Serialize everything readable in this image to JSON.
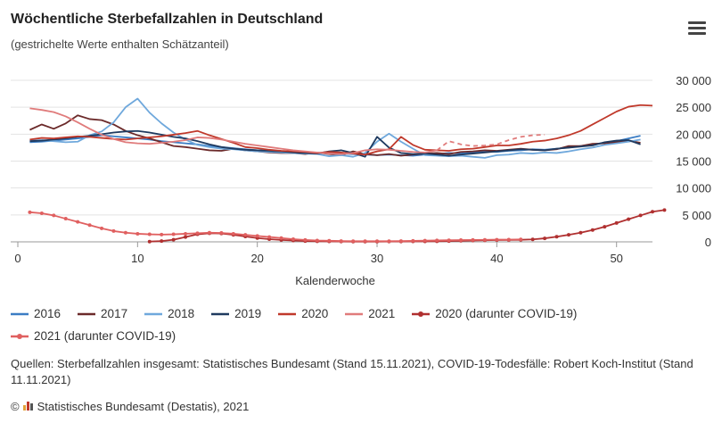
{
  "header": {
    "title": "Wöchentliche Sterbefallzahlen in Deutschland",
    "subtitle": "(gestrichelte Werte enthalten Schätzanteil)",
    "menu_icon": "hamburger-menu-icon"
  },
  "chart_data": {
    "type": "line",
    "title": "Wöchentliche Sterbefallzahlen in Deutschland",
    "subtitle": "(gestrichelte Werte enthalten Schätzanteil)",
    "xlabel": "Kalenderwoche",
    "ylabel": "",
    "xlim": [
      0,
      53
    ],
    "ylim": [
      0,
      30000
    ],
    "x_ticks": [
      0,
      10,
      20,
      30,
      40,
      50
    ],
    "x_tick_labels": [
      "0",
      "10",
      "20",
      "30",
      "40",
      "50"
    ],
    "y_ticks": [
      0,
      5000,
      10000,
      15000,
      20000,
      25000,
      30000
    ],
    "y_tick_labels": [
      "0",
      "5 000",
      "10 000",
      "15 000",
      "20 000",
      "25 000",
      "30 000"
    ],
    "grid": "horizontal",
    "legend_position": "bottom",
    "series": [
      {
        "name": "2016",
        "color": "#3b7dc4",
        "dashed_from": null,
        "markers": false,
        "x_start": 1,
        "values": [
          18500,
          18600,
          18800,
          19000,
          19200,
          19500,
          19800,
          19600,
          19400,
          19200,
          19000,
          18700,
          18500,
          18300,
          18100,
          17800,
          17600,
          17400,
          17200,
          17000,
          16900,
          16800,
          16700,
          16600,
          16500,
          16600,
          16400,
          16300,
          16200,
          16100,
          16200,
          16100,
          16000,
          16200,
          16300,
          16500,
          16400,
          16600,
          16800,
          16700,
          16900,
          17000,
          17200,
          17100,
          17300,
          17500,
          17800,
          18100,
          18400,
          18700,
          19200,
          19700
        ]
      },
      {
        "name": "2017",
        "color": "#6b2a2a",
        "dashed_from": null,
        "markers": false,
        "x_start": 1,
        "values": [
          20800,
          21800,
          21000,
          22000,
          23500,
          22800,
          22600,
          21800,
          20600,
          19800,
          19200,
          18500,
          17800,
          17600,
          17300,
          17000,
          16900,
          17300,
          17000,
          16800,
          16600,
          16500,
          16500,
          16300,
          16600,
          16300,
          16100,
          16800,
          16300,
          16100,
          16300,
          16000,
          16200,
          16400,
          16500,
          16300,
          16700,
          16800,
          17000,
          16900,
          17100,
          17300,
          17100,
          17000,
          17200,
          17800,
          17800,
          18200,
          18300,
          18500,
          18800,
          18400
        ]
      },
      {
        "name": "2018",
        "color": "#6fa8dc",
        "dashed_from": null,
        "markers": false,
        "x_start": 1,
        "values": [
          18800,
          18900,
          18700,
          18500,
          18600,
          19800,
          20500,
          22200,
          25000,
          26600,
          24000,
          22000,
          20300,
          19000,
          18000,
          17600,
          17300,
          17200,
          17000,
          16800,
          16700,
          16600,
          16500,
          16400,
          16300,
          15900,
          16100,
          15800,
          16500,
          18600,
          20100,
          18600,
          17300,
          16100,
          16000,
          15900,
          16000,
          15800,
          15600,
          16100,
          16200,
          16500,
          16400,
          16600,
          16500,
          16800,
          17200,
          17500,
          18000,
          18300,
          18600,
          19000
        ]
      },
      {
        "name": "2019",
        "color": "#1f3a5f",
        "dashed_from": null,
        "markers": false,
        "x_start": 1,
        "values": [
          18700,
          18800,
          19000,
          19200,
          19500,
          19700,
          20000,
          20300,
          20500,
          20600,
          20300,
          19900,
          19500,
          19200,
          18700,
          18100,
          17600,
          17300,
          17100,
          17000,
          16900,
          16800,
          16600,
          16500,
          16400,
          16800,
          17000,
          16500,
          15800,
          19500,
          17500,
          16500,
          16300,
          16400,
          16200,
          16000,
          16200,
          16400,
          16600,
          16800,
          17000,
          17200,
          17100,
          17000,
          17300,
          17500,
          17700,
          17900,
          18500,
          18800,
          18900,
          18100
        ]
      },
      {
        "name": "2020",
        "color": "#c0392b",
        "dashed_from": null,
        "markers": false,
        "x_start": 1,
        "values": [
          19000,
          19300,
          19200,
          19400,
          19600,
          19500,
          19300,
          19100,
          19000,
          19200,
          19400,
          19600,
          19900,
          20200,
          20600,
          19800,
          19100,
          18400,
          17600,
          17400,
          17100,
          16900,
          16800,
          16700,
          16500,
          16700,
          16600,
          16400,
          16200,
          16800,
          17200,
          19500,
          18000,
          17100,
          17000,
          16900,
          17200,
          17300,
          17600,
          17900,
          17900,
          18200,
          18600,
          18800,
          19200,
          19800,
          20600,
          21800,
          23000,
          24200,
          25100,
          25400,
          25300
        ]
      },
      {
        "name": "2021",
        "color": "#e07b7b",
        "dashed_from": 35,
        "markers": false,
        "x_start": 1,
        "values": [
          24800,
          24500,
          24100,
          23300,
          22200,
          21000,
          19900,
          19100,
          18500,
          18300,
          18200,
          18400,
          18600,
          18900,
          19400,
          19300,
          19000,
          18600,
          18200,
          17900,
          17600,
          17300,
          17000,
          16800,
          16600,
          16400,
          16300,
          16500,
          17000,
          17200,
          17100,
          16900,
          16700,
          16600,
          17000,
          18700,
          18100,
          17800,
          17900,
          18100,
          18900,
          19500,
          19800,
          19900
        ]
      },
      {
        "name": "2020 (darunter COVID-19)",
        "color": "#b03030",
        "dashed_from": null,
        "markers": true,
        "x_start": 11,
        "values": [
          50,
          150,
          400,
          900,
          1400,
          1600,
          1550,
          1300,
          1000,
          700,
          500,
          350,
          250,
          150,
          100,
          80,
          60,
          50,
          50,
          50,
          60,
          70,
          80,
          90,
          100,
          150,
          200,
          250,
          300,
          330,
          350,
          380,
          450,
          650,
          950,
          1300,
          1700,
          2200,
          2800,
          3500,
          4200,
          4900,
          5600,
          5900
        ]
      },
      {
        "name": "2021 (darunter COVID-19)",
        "color": "#e06060",
        "dashed_from": null,
        "markers": true,
        "x_start": 1,
        "values": [
          5500,
          5300,
          4900,
          4300,
          3700,
          3100,
          2500,
          2000,
          1700,
          1500,
          1400,
          1350,
          1400,
          1500,
          1600,
          1700,
          1650,
          1500,
          1300,
          1100,
          900,
          700,
          500,
          350,
          250,
          200,
          150,
          130,
          120,
          120,
          130,
          150,
          180,
          220,
          260,
          300,
          330,
          350,
          370,
          400,
          420,
          450
        ]
      }
    ]
  },
  "legend": {
    "items": [
      {
        "label": "2016",
        "color": "#3b7dc4",
        "marker": false
      },
      {
        "label": "2017",
        "color": "#6b2a2a",
        "marker": false
      },
      {
        "label": "2018",
        "color": "#6fa8dc",
        "marker": false
      },
      {
        "label": "2019",
        "color": "#1f3a5f",
        "marker": false
      },
      {
        "label": "2020",
        "color": "#c0392b",
        "marker": false
      },
      {
        "label": "2021",
        "color": "#e07b7b",
        "marker": false
      },
      {
        "label": "2020 (darunter COVID-19)",
        "color": "#b03030",
        "marker": true
      },
      {
        "label": "2021 (darunter COVID-19)",
        "color": "#e06060",
        "marker": true
      }
    ]
  },
  "footer": {
    "sources": "Quellen: Sterbefallzahlen insgesamt: Statistisches Bundesamt (Stand 15.11.2021), COVID-19-Todesfälle: Robert Koch-Institut (Stand 11.11.2021)",
    "copyright_symbol": "©",
    "copyright_text": "Statistisches Bundesamt (Destatis), 2021",
    "logo_icon": "destatis-logo-icon"
  }
}
